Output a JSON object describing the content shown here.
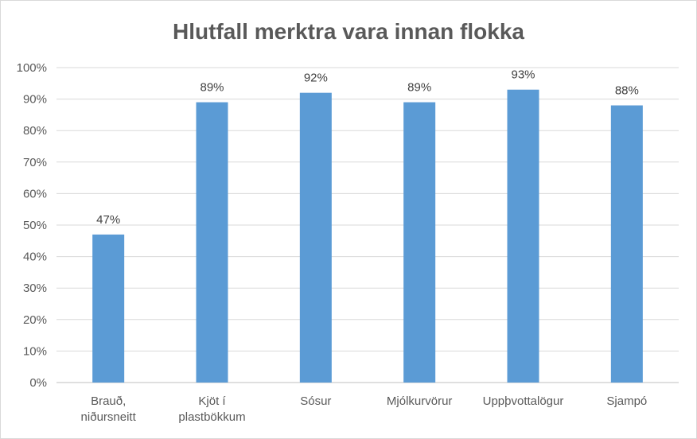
{
  "chart_data": {
    "type": "bar",
    "title": "Hlutfall merktra vara innan flokka",
    "xlabel": "",
    "ylabel": "",
    "categories": [
      [
        "Brauð,",
        "niðursneitt"
      ],
      [
        "Kjöt í",
        "plastbökkum"
      ],
      [
        "Sósur"
      ],
      [
        "Mjólkurvörur"
      ],
      [
        "Uppþvottalögur"
      ],
      [
        "Sjampó"
      ]
    ],
    "values": [
      47,
      89,
      92,
      89,
      93,
      88
    ],
    "value_labels": [
      "47%",
      "89%",
      "92%",
      "89%",
      "93%",
      "88%"
    ],
    "ylim": [
      0,
      100
    ],
    "yticks": [
      0,
      10,
      20,
      30,
      40,
      50,
      60,
      70,
      80,
      90,
      100
    ],
    "ytick_labels": [
      "0%",
      "10%",
      "20%",
      "30%",
      "40%",
      "50%",
      "60%",
      "70%",
      "80%",
      "90%",
      "100%"
    ],
    "grid": true,
    "legend": "none",
    "bar_color": "#5b9bd5"
  }
}
